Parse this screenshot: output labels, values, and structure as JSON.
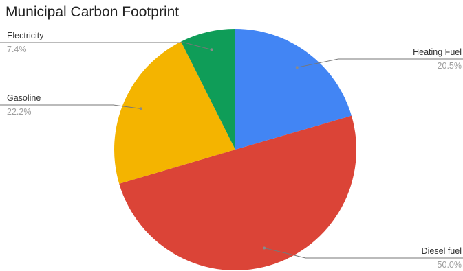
{
  "chart_data": {
    "type": "pie",
    "title": "Municipal Carbon Footprint",
    "start_angle_deg": 0,
    "direction": "clockwise",
    "slices": [
      {
        "label": "Heating Fuel",
        "value": 20.5,
        "value_label": "20.5%",
        "color": "#4285f4",
        "label_side": "right"
      },
      {
        "label": "Diesel fuel",
        "value": 50.0,
        "value_label": "50.0%",
        "color": "#db4437",
        "label_side": "right"
      },
      {
        "label": "Gasoline",
        "value": 22.2,
        "value_label": "22.2%",
        "color": "#f4b400",
        "label_side": "left"
      },
      {
        "label": "Electricity",
        "value": 7.4,
        "value_label": "7.4%",
        "color": "#0f9d58",
        "label_side": "left"
      }
    ]
  }
}
